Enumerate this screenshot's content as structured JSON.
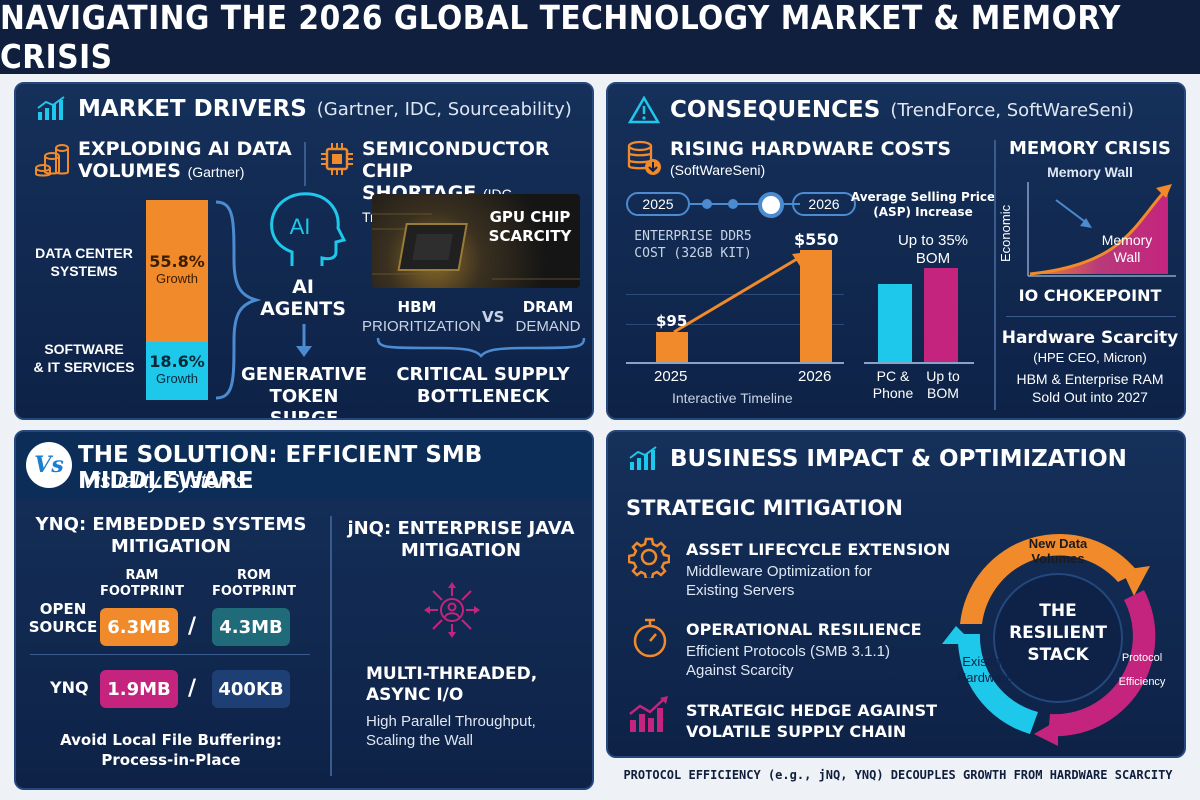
{
  "title": "NAVIGATING THE 2026 GLOBAL TECHNOLOGY MARKET & MEMORY CRISIS",
  "colors": {
    "orange": "#f08a2a",
    "cyan": "#1ec8ea",
    "magenta": "#c4247e",
    "navy": "#0f1f3d",
    "teal": "#1f6b7a"
  },
  "drivers": {
    "heading": "MARKET DRIVERS",
    "sources": "(Gartner, IDC, Sourceability)",
    "ai_title_1": "EXPLODING AI DATA",
    "ai_title_2": "VOLUMES",
    "ai_src": "(Gartner)",
    "chip_title_1": "SEMICONDUCTOR CHIP",
    "chip_title_2": "SHORTAGE",
    "chip_src": "(IDC, TrendForce)",
    "dc_label_1": "DATA CENTER",
    "dc_label_2": "SYSTEMS",
    "dc_pct": "55.8%",
    "dc_growth": "Growth",
    "sw_label_1": "SOFTWARE",
    "sw_label_2": "& IT SERVICES",
    "sw_pct": "18.6%",
    "sw_growth": "Growth",
    "ai_icon_text": "AI",
    "ai_agents_1": "AI",
    "ai_agents_2": "AGENTS",
    "gen_1": "GENERATIVE",
    "gen_2": "TOKEN SURGE",
    "gpu_1": "GPU CHIP",
    "gpu_2": "SCARCITY",
    "hbm_1": "HBM",
    "hbm_2": "PRIORITIZATION",
    "vs": "VS",
    "dram_1": "DRAM",
    "dram_2": "DEMAND",
    "bottleneck_1": "CRITICAL SUPPLY",
    "bottleneck_2": "BOTTLENECK"
  },
  "consequences": {
    "heading": "CONSEQUENCES",
    "sources": "(TrendForce, SoftWareSeni)",
    "costs_title": "RISING HARDWARE COSTS",
    "costs_src": "(SoftWareSeni)",
    "timeline_start": "2025",
    "timeline_end": "2026",
    "ddr5_1": "ENTERPRISE DDR5",
    "ddr5_2": "COST (32GB KIT)",
    "bar_2025_value": "$95",
    "bar_2026_value": "$550",
    "bar_2025_label": "2025",
    "bar_2026_label": "2026",
    "timeline_caption": "Interactive Timeline",
    "asp_1": "Average Selling Price",
    "asp_2": "(ASP) Increase",
    "upto_1": "Up to 35%",
    "upto_2": "BOM",
    "pc_1": "PC &",
    "pc_2": "Phone",
    "bom_1": "Up to",
    "bom_2": "BOM",
    "crisis_title": "MEMORY CRISIS",
    "memory_wall_top": "Memory Wall",
    "economic": "Economic",
    "wall_1": "Memory",
    "wall_2": "Wall",
    "io": "IO CHOKEPOINT",
    "scarcity_title": "Hardware Scarcity",
    "scarcity_src": "(HPE CEO, Micron)",
    "scarcity_1": "HBM & Enterprise RAM",
    "scarcity_2": "Sold Out into 2027"
  },
  "solution": {
    "heading": "THE SOLUTION: EFFICIENT SMB MIDDLEWARE",
    "brand": "Visuality Systems",
    "logo": "Vs",
    "ynq_title_1": "YNQ: EMBEDDED SYSTEMS",
    "ynq_title_2": "MITIGATION",
    "ram_1": "RAM",
    "ram_2": "FOOTPRINT",
    "rom_1": "ROM",
    "rom_2": "FOOTPRINT",
    "open_1": "OPEN",
    "open_2": "SOURCE",
    "open_ram": "6.3MB",
    "open_rom": "4.3MB",
    "ynq_label": "YNQ",
    "ynq_ram": "1.9MB",
    "ynq_rom": "400KB",
    "slash": "/",
    "avoid_1": "Avoid Local File Buffering:",
    "avoid_2": "Process-in-Place",
    "jnq_title_1": "jNQ: ENTERPRISE JAVA",
    "jnq_title_2": "MITIGATION",
    "mt_1": "MULTI-THREADED,",
    "mt_2": "ASYNC I/O",
    "hp_1": "High Parallel Throughput,",
    "hp_2": "Scaling the Wall"
  },
  "impact": {
    "heading": "BUSINESS IMPACT & OPTIMIZATION",
    "strategic": "STRATEGIC MITIGATION",
    "item1_title": "ASSET LIFECYCLE EXTENSION",
    "item1_1": "Middleware Optimization for",
    "item1_2": "Existing Servers",
    "item2_title": "OPERATIONAL RESILIENCE",
    "item2_1": "Efficient Protocols (SMB 3.1.1)",
    "item2_2": "Against Scarcity",
    "item3_title_1": "STRATEGIC HEDGE AGAINST",
    "item3_title_2": "VOLATILE SUPPLY CHAIN",
    "cycle_new_1": "New Data",
    "cycle_new_2": "Volumes",
    "cycle_proto_1": "Protocol",
    "cycle_proto_2": "Efficiency",
    "cycle_hw_1": "Existing",
    "cycle_hw_2": "Hardware",
    "center_1": "THE",
    "center_2": "RESILIENT",
    "center_3": "STACK"
  },
  "footer": "PROTOCOL EFFICIENCY (e.g., jNQ, YNQ) DECOUPLES GROWTH FROM HARDWARE SCARCITY"
}
